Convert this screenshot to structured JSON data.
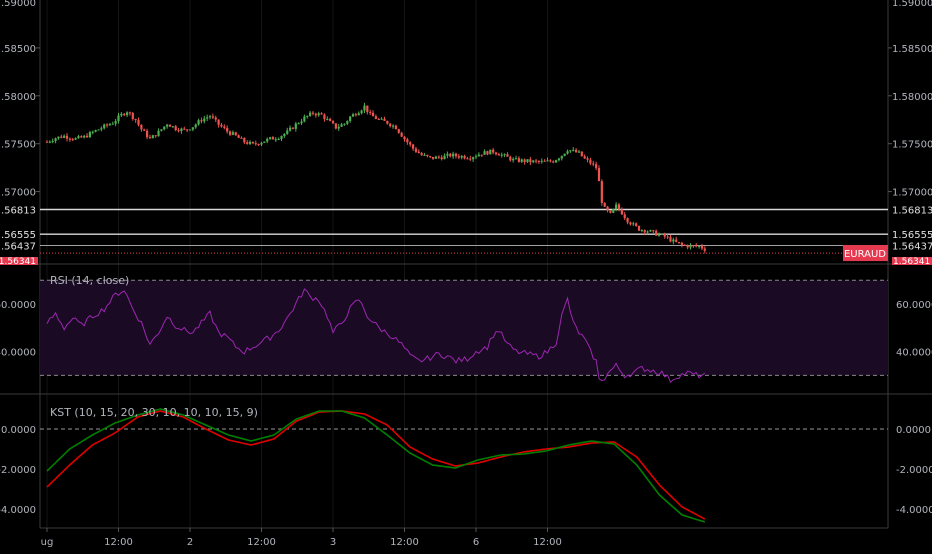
{
  "colors": {
    "background": "#000000",
    "up": "#26a69a",
    "up_body": "#4caf50",
    "down": "#ef5350",
    "axis_text": "#b2b5be",
    "grid": "#2a2e39",
    "rsi_line": "#9c27b0",
    "rsi_band": "#1a0a24",
    "kst_line": "#e00000",
    "signal_line": "#008000",
    "price_tag": "#e53950",
    "hline": "#d8d8d8"
  },
  "chart_data": [
    {
      "type": "candlestick",
      "panel": "price",
      "symbol": "EURAUD",
      "ylim": [
        1.56265,
        1.59
      ],
      "y_ticks": [
        "1.58500",
        "1.58000",
        "1.57500",
        "1.57000"
      ],
      "x_ticks": [
        "ug",
        "12:00",
        "2",
        "12:00",
        "3",
        "12:00",
        "6",
        "12:00"
      ],
      "x_tick_bars": [
        0,
        25,
        50,
        75,
        100,
        125,
        150,
        175
      ],
      "horizontal_lines": [
        1.56813,
        1.56555,
        1.56437
      ],
      "horizontal_line_labels": [
        "1.56813",
        "1.56555",
        "1.56437"
      ],
      "last_price_label": "EURAUD",
      "top_tick": "1.59000",
      "bottom_tick": "1.56341",
      "anchors": [
        [
          0,
          1.5752
        ],
        [
          3,
          1.5756
        ],
        [
          6,
          1.5758
        ],
        [
          10,
          1.5755
        ],
        [
          13,
          1.5757
        ],
        [
          16,
          1.5762
        ],
        [
          20,
          1.5768
        ],
        [
          23,
          1.5772
        ],
        [
          26,
          1.578
        ],
        [
          28,
          1.5784
        ],
        [
          31,
          1.5775
        ],
        [
          33,
          1.5765
        ],
        [
          36,
          1.5755
        ],
        [
          39,
          1.5762
        ],
        [
          42,
          1.5771
        ],
        [
          45,
          1.5766
        ],
        [
          48,
          1.5764
        ],
        [
          51,
          1.5768
        ],
        [
          54,
          1.5775
        ],
        [
          57,
          1.5779
        ],
        [
          60,
          1.577
        ],
        [
          63,
          1.5763
        ],
        [
          66,
          1.5758
        ],
        [
          69,
          1.5752
        ],
        [
          72,
          1.5749
        ],
        [
          75,
          1.5752
        ],
        [
          78,
          1.5755
        ],
        [
          81,
          1.5757
        ],
        [
          84,
          1.5762
        ],
        [
          87,
          1.577
        ],
        [
          90,
          1.5777
        ],
        [
          93,
          1.5782
        ],
        [
          96,
          1.578
        ],
        [
          99,
          1.5772
        ],
        [
          101,
          1.5767
        ],
        [
          104,
          1.5771
        ],
        [
          106,
          1.5778
        ],
        [
          109,
          1.5784
        ],
        [
          111,
          1.5789
        ],
        [
          113,
          1.578
        ],
        [
          116,
          1.5775
        ],
        [
          119,
          1.5772
        ],
        [
          122,
          1.5767
        ],
        [
          125,
          1.5755
        ],
        [
          128,
          1.5745
        ],
        [
          131,
          1.5738
        ],
        [
          134,
          1.5735
        ],
        [
          138,
          1.5736
        ],
        [
          141,
          1.5738
        ],
        [
          144,
          1.5737
        ],
        [
          148,
          1.5736
        ],
        [
          152,
          1.574
        ],
        [
          156,
          1.5742
        ],
        [
          160,
          1.5737
        ],
        [
          163,
          1.5733
        ],
        [
          167,
          1.5732
        ],
        [
          171,
          1.5731
        ],
        [
          174,
          1.5731
        ],
        [
          177,
          1.5732
        ],
        [
          180,
          1.5738
        ],
        [
          182,
          1.5744
        ],
        [
          184,
          1.5742
        ],
        [
          186,
          1.574
        ],
        [
          188,
          1.5734
        ],
        [
          190,
          1.573
        ],
        [
          192,
          1.5725
        ],
        [
          193,
          1.571
        ],
        [
          194,
          1.569
        ],
        [
          195,
          1.5682
        ],
        [
          197,
          1.5676
        ],
        [
          199,
          1.5685
        ],
        [
          201,
          1.5678
        ],
        [
          203,
          1.567
        ],
        [
          205,
          1.5665
        ],
        [
          207,
          1.5661
        ],
        [
          210,
          1.5659
        ],
        [
          213,
          1.5656
        ],
        [
          216,
          1.5653
        ],
        [
          219,
          1.5648
        ],
        [
          222,
          1.5644
        ],
        [
          225,
          1.5643
        ],
        [
          228,
          1.5643
        ],
        [
          230,
          1.564
        ]
      ],
      "bar_count": 231
    },
    {
      "type": "line",
      "panel": "rsi",
      "title": "RSI (14, close)",
      "ylim": [
        23,
        76
      ],
      "y_ticks": [
        "60.0000",
        "40.0000"
      ],
      "bands": [
        70,
        30
      ],
      "anchors": [
        [
          0,
          52
        ],
        [
          3,
          56
        ],
        [
          6,
          50
        ],
        [
          9,
          54
        ],
        [
          12,
          51
        ],
        [
          16,
          55
        ],
        [
          20,
          58
        ],
        [
          24,
          64
        ],
        [
          27,
          66
        ],
        [
          30,
          58
        ],
        [
          33,
          52
        ],
        [
          36,
          43
        ],
        [
          39,
          48
        ],
        [
          42,
          55
        ],
        [
          45,
          51
        ],
        [
          48,
          49
        ],
        [
          51,
          48
        ],
        [
          54,
          52
        ],
        [
          57,
          56
        ],
        [
          60,
          48
        ],
        [
          63,
          46
        ],
        [
          66,
          42
        ],
        [
          69,
          40
        ],
        [
          72,
          42
        ],
        [
          75,
          44
        ],
        [
          78,
          46
        ],
        [
          81,
          49
        ],
        [
          84,
          54
        ],
        [
          87,
          60
        ],
        [
          90,
          66
        ],
        [
          92,
          63
        ],
        [
          95,
          62
        ],
        [
          98,
          55
        ],
        [
          100,
          48
        ],
        [
          103,
          52
        ],
        [
          106,
          58
        ],
        [
          109,
          62
        ],
        [
          112,
          55
        ],
        [
          116,
          50
        ],
        [
          120,
          47
        ],
        [
          124,
          43
        ],
        [
          127,
          38
        ],
        [
          130,
          36
        ],
        [
          133,
          37
        ],
        [
          137,
          39
        ],
        [
          140,
          38
        ],
        [
          143,
          36
        ],
        [
          147,
          37
        ],
        [
          150,
          40
        ],
        [
          154,
          42
        ],
        [
          156,
          47
        ],
        [
          158,
          49
        ],
        [
          161,
          43
        ],
        [
          164,
          40
        ],
        [
          168,
          39
        ],
        [
          172,
          38
        ],
        [
          175,
          40
        ],
        [
          178,
          44
        ],
        [
          180,
          55
        ],
        [
          182,
          62
        ],
        [
          184,
          52
        ],
        [
          186,
          48
        ],
        [
          188,
          45
        ],
        [
          190,
          40
        ],
        [
          192,
          36
        ],
        [
          193,
          28
        ],
        [
          195,
          29
        ],
        [
          197,
          32
        ],
        [
          199,
          34
        ],
        [
          202,
          30
        ],
        [
          205,
          31
        ],
        [
          208,
          33
        ],
        [
          212,
          32
        ],
        [
          215,
          31
        ],
        [
          218,
          28
        ],
        [
          221,
          30
        ],
        [
          224,
          31
        ],
        [
          227,
          30
        ],
        [
          230,
          30
        ]
      ],
      "bar_count": 231
    },
    {
      "type": "line",
      "panel": "kst",
      "title": "KST (10, 15, 20, 30, 10, 10, 10, 15, 9)",
      "ylim": [
        -4.95,
        1.65
      ],
      "y_ticks": [
        "0.0000",
        "-2.0000",
        "-4.0000"
      ],
      "zero_line": 0,
      "series": [
        {
          "role": "kst",
          "anchors": [
            [
              0,
              -2.9
            ],
            [
              10,
              -1.8
            ],
            [
              20,
              -0.8
            ],
            [
              30,
              -0.2
            ],
            [
              40,
              0.6
            ],
            [
              50,
              0.9
            ],
            [
              60,
              0.6
            ],
            [
              70,
              0.0
            ],
            [
              80,
              -0.55
            ],
            [
              90,
              -0.8
            ],
            [
              100,
              -0.5
            ],
            [
              110,
              0.4
            ],
            [
              120,
              0.85
            ],
            [
              130,
              0.9
            ],
            [
              140,
              0.75
            ],
            [
              150,
              0.2
            ],
            [
              160,
              -0.9
            ],
            [
              170,
              -1.5
            ],
            [
              180,
              -1.85
            ],
            [
              190,
              -1.7
            ],
            [
              200,
              -1.4
            ],
            [
              210,
              -1.15
            ],
            [
              220,
              -1.0
            ],
            [
              230,
              -0.9
            ],
            [
              240,
              -0.7
            ],
            [
              250,
              -0.65
            ],
            [
              260,
              -1.4
            ],
            [
              270,
              -2.8
            ],
            [
              280,
              -3.9
            ],
            [
              290,
              -4.5
            ]
          ]
        },
        {
          "role": "signal",
          "anchors": [
            [
              0,
              -2.1
            ],
            [
              10,
              -1.0
            ],
            [
              20,
              -0.3
            ],
            [
              30,
              0.3
            ],
            [
              40,
              0.7
            ],
            [
              50,
              1.0
            ],
            [
              60,
              0.7
            ],
            [
              70,
              0.2
            ],
            [
              80,
              -0.3
            ],
            [
              90,
              -0.6
            ],
            [
              100,
              -0.3
            ],
            [
              110,
              0.5
            ],
            [
              120,
              0.9
            ],
            [
              130,
              0.9
            ],
            [
              140,
              0.55
            ],
            [
              150,
              -0.3
            ],
            [
              160,
              -1.2
            ],
            [
              170,
              -1.8
            ],
            [
              180,
              -1.95
            ],
            [
              190,
              -1.55
            ],
            [
              200,
              -1.3
            ],
            [
              210,
              -1.25
            ],
            [
              220,
              -1.1
            ],
            [
              230,
              -0.8
            ],
            [
              240,
              -0.6
            ],
            [
              250,
              -0.75
            ],
            [
              260,
              -1.8
            ],
            [
              270,
              -3.3
            ],
            [
              280,
              -4.3
            ],
            [
              290,
              -4.65
            ]
          ]
        }
      ],
      "x_max": 290
    }
  ]
}
